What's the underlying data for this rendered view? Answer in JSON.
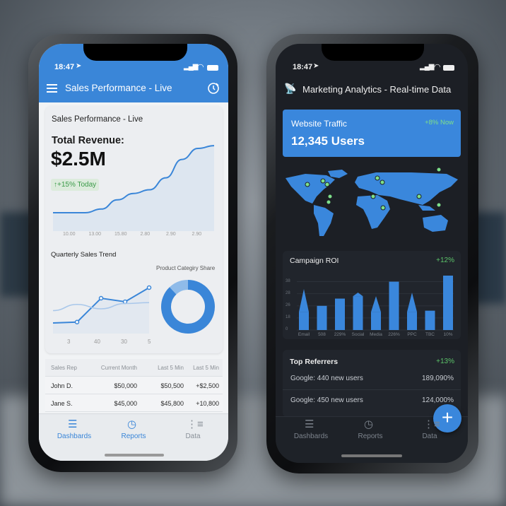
{
  "left_phone": {
    "status": {
      "time": "18:47"
    },
    "header": {
      "title": "Sales Performance - Live",
      "menu_icon": "hamburger-icon",
      "timer_icon": "stopwatch-icon"
    },
    "card": {
      "title": "Sales Performance - Live",
      "revenue_label": "Total Revenue:",
      "revenue_value": "$2.5M",
      "change_badge": "↑+15% Today"
    },
    "revenue_chart": {
      "type": "area",
      "x_labels": [
        "10.00",
        "13.00",
        "15.80",
        "2.80",
        "2.90",
        "2.90"
      ],
      "values": [
        20,
        20,
        20,
        24,
        34,
        41,
        45,
        58,
        78,
        90,
        93
      ]
    },
    "quarterly": {
      "title": "Quarterly Sales Trend",
      "x_labels": [
        "3",
        "40",
        "30",
        "5"
      ],
      "series": [
        {
          "values": [
            12,
            13,
            40,
            36,
            52
          ]
        },
        {
          "values": [
            26,
            33,
            28,
            34,
            35
          ]
        }
      ]
    },
    "donut": {
      "title": "Product Categiry Share",
      "slices": [
        88,
        12
      ],
      "colors": [
        "#3a86d8",
        "#8fbbe9"
      ]
    },
    "table": {
      "headers": [
        "Sales Rep",
        "Current Month",
        "Last 5 Min",
        "Last 5 Min"
      ],
      "rows": [
        [
          "John D.",
          "$50,000",
          "$50,500",
          "+$2,500"
        ],
        [
          "Jane S.",
          "$45,000",
          "$45,800",
          "+10,800"
        ]
      ]
    },
    "tabs": [
      {
        "label": "Dashbards",
        "icon": "list-icon"
      },
      {
        "label": "Reports",
        "icon": "clock-icon"
      },
      {
        "label": "Data",
        "icon": "data-list-icon"
      }
    ]
  },
  "right_phone": {
    "status": {
      "time": "18:47"
    },
    "header": {
      "title": "Marketing Analytics - Real-time Data",
      "icon": "satellite-dish-icon"
    },
    "traffic": {
      "title": "Website Traffic",
      "change": "+8% Now",
      "value": "12,345 Users"
    },
    "roi": {
      "title": "Campaign ROI",
      "change": "+12%",
      "chart": {
        "type": "bar",
        "y_ticks": [
          "0",
          "18",
          "26",
          "28",
          "38"
        ],
        "categories": [
          "Email",
          "508",
          "229%",
          "Social",
          "Media",
          "226%",
          "PPC",
          "TBC",
          "10%"
        ],
        "values": [
          15,
          20,
          26,
          28,
          15,
          40,
          15,
          16,
          45
        ],
        "spikes": [
          34,
          0,
          0,
          31,
          28,
          0,
          31,
          0,
          0
        ]
      }
    },
    "referrers": {
      "title": "Top Referrers",
      "change": "+13%",
      "rows": [
        {
          "label": "Google: 440 new users",
          "value": "189,090%"
        },
        {
          "label": "Google: 450 new users",
          "value": "124,000%"
        }
      ]
    },
    "tabs": [
      {
        "label": "Dashbards",
        "icon": "list-icon"
      },
      {
        "label": "Reports",
        "icon": "clock-icon"
      },
      {
        "label": "Data",
        "icon": "data-list-icon"
      }
    ],
    "fab": {
      "icon": "plus-icon"
    }
  },
  "colors": {
    "accent": "#3a86d8",
    "positive": "#4caf50",
    "dark_bg": "#1c1f25"
  }
}
